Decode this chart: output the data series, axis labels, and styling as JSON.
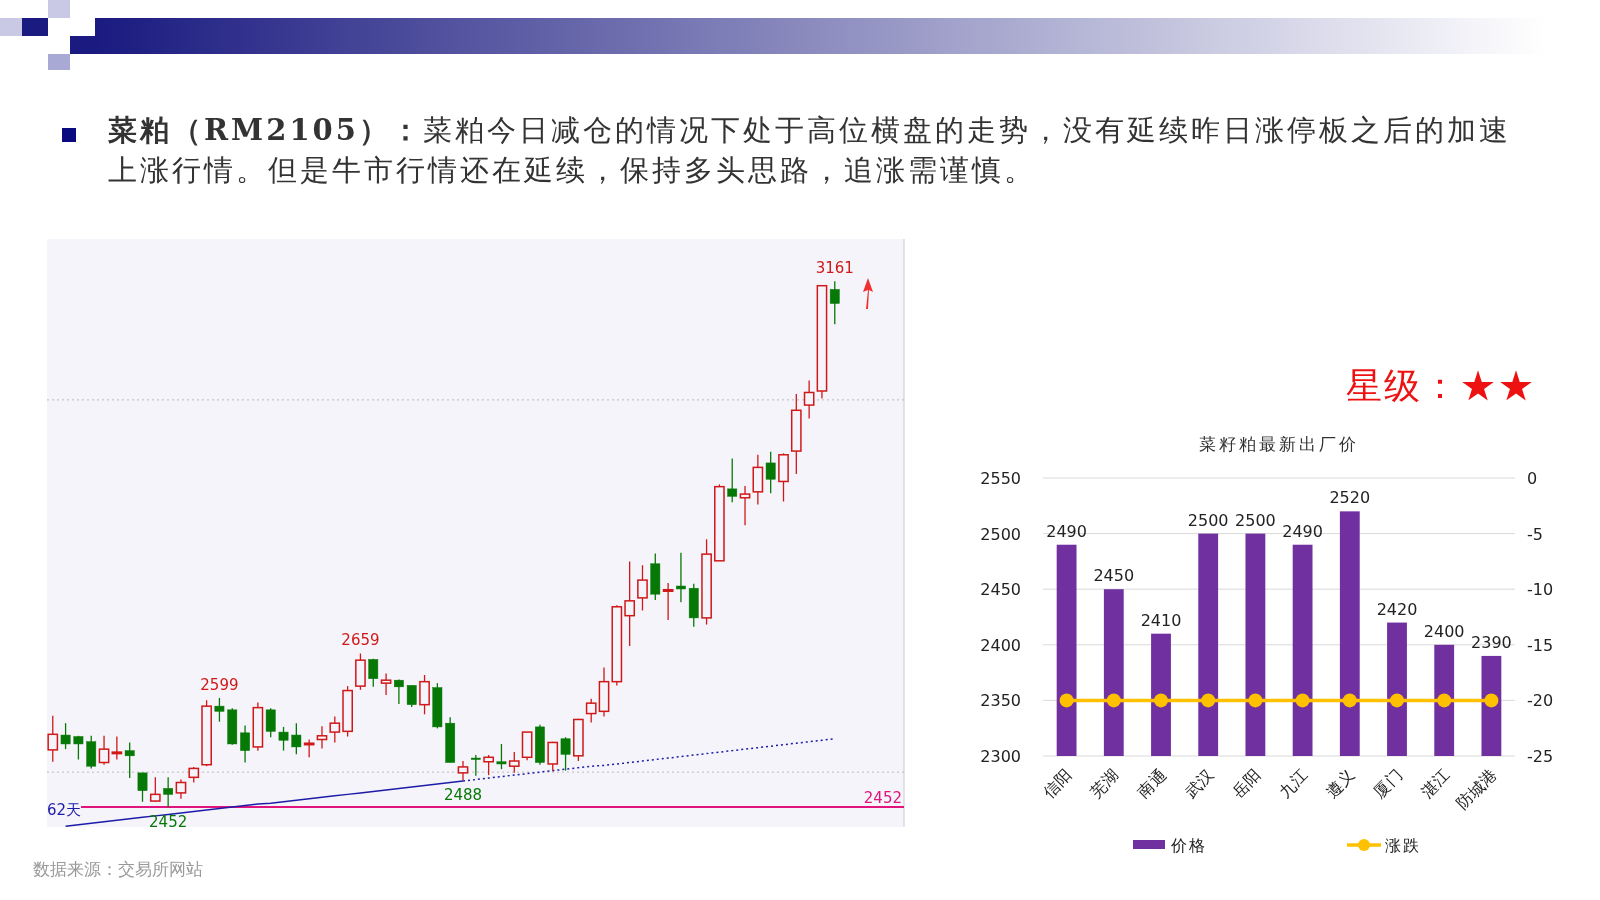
{
  "chart_data": [
    {
      "type": "candlestick",
      "title": "**菜粕（RM2105）：**菜粕今日减仓的情况下处于高位横盘的走势，没有延续昨日涨停板之后的加速上涨行情。但是牛市行情还在延续，保持多头思路，追涨需谨慎。",
      "categories": [
        null,
        null,
        null,
        null,
        null,
        null,
        null,
        null,
        null,
        null,
        null,
        null,
        null,
        null,
        null,
        null,
        null,
        null,
        null,
        null,
        null,
        null,
        null,
        null,
        null,
        null,
        null,
        null,
        null,
        null,
        null,
        null,
        null,
        null,
        null,
        null,
        null,
        null,
        null,
        null,
        null,
        null,
        null,
        null,
        null,
        null,
        null,
        null,
        null,
        null,
        null,
        null,
        null,
        null,
        null,
        null,
        null,
        null,
        null,
        null,
        null,
        null
      ],
      "ohlc": [
        [
          2529,
          2575,
          2513,
          2550
        ],
        [
          2549,
          2565,
          2530,
          2537
        ],
        [
          2547,
          2548,
          2516,
          2537
        ],
        [
          2540,
          2548,
          2504,
          2507
        ],
        [
          2512,
          2548,
          2509,
          2530
        ],
        [
          2525,
          2547,
          2516,
          2526
        ],
        [
          2528,
          2539,
          2491,
          2521
        ],
        [
          2498,
          2498,
          2459,
          2474
        ],
        [
          2460,
          2492,
          2459,
          2469
        ],
        [
          2477,
          2492,
          2452,
          2469
        ],
        [
          2471,
          2489,
          2463,
          2485
        ],
        [
          2492,
          2506,
          2485,
          2504
        ],
        [
          2509,
          2596,
          2507,
          2588
        ],
        [
          2588,
          2599,
          2567,
          2581
        ],
        [
          2583,
          2585,
          2536,
          2537
        ],
        [
          2552,
          2562,
          2512,
          2528
        ],
        [
          2533,
          2593,
          2528,
          2586
        ],
        [
          2583,
          2585,
          2546,
          2554
        ],
        [
          2553,
          2560,
          2528,
          2542
        ],
        [
          2549,
          2565,
          2523,
          2533
        ],
        [
          2537,
          2543,
          2519,
          2538
        ],
        [
          2543,
          2561,
          2531,
          2548
        ],
        [
          2553,
          2574,
          2539,
          2565
        ],
        [
          2554,
          2615,
          2547,
          2609
        ],
        [
          2615,
          2659,
          2610,
          2650
        ],
        [
          2651,
          2652,
          2614,
          2625
        ],
        [
          2619,
          2632,
          2603,
          2623
        ],
        [
          2623,
          2624,
          2591,
          2614
        ],
        [
          2616,
          2616,
          2587,
          2590
        ],
        [
          2590,
          2630,
          2577,
          2621
        ],
        [
          2613,
          2619,
          2558,
          2560
        ],
        [
          2565,
          2573,
          2512,
          2512
        ],
        [
          2498,
          2514,
          2488,
          2506
        ],
        [
          2518,
          2522,
          2494,
          2516
        ],
        [
          2513,
          2522,
          2495,
          2519
        ],
        [
          2513,
          2537,
          2503,
          2510
        ],
        [
          2507,
          2526,
          2498,
          2514
        ],
        [
          2519,
          2553,
          2515,
          2553
        ],
        [
          2560,
          2563,
          2509,
          2512
        ],
        [
          2510,
          2540,
          2501,
          2539
        ],
        [
          2544,
          2546,
          2501,
          2523
        ],
        [
          2521,
          2571,
          2514,
          2570
        ],
        [
          2578,
          2598,
          2566,
          2592
        ],
        [
          2581,
          2640,
          2574,
          2621
        ],
        [
          2621,
          2724,
          2616,
          2722
        ],
        [
          2710,
          2783,
          2669,
          2730
        ],
        [
          2734,
          2778,
          2717,
          2758
        ],
        [
          2780,
          2794,
          2731,
          2739
        ],
        [
          2743,
          2754,
          2704,
          2745
        ],
        [
          2750,
          2795,
          2728,
          2746
        ],
        [
          2747,
          2753,
          2695,
          2707
        ],
        [
          2707,
          2813,
          2698,
          2793
        ],
        [
          2784,
          2887,
          2784,
          2884
        ],
        [
          2881,
          2922,
          2863,
          2871
        ],
        [
          2869,
          2885,
          2832,
          2874
        ],
        [
          2877,
          2927,
          2860,
          2910
        ],
        [
          2916,
          2931,
          2875,
          2894
        ],
        [
          2891,
          2929,
          2864,
          2927
        ],
        [
          2932,
          3009,
          2901,
          2987
        ],
        [
          2994,
          3027,
          2976,
          3011
        ],
        [
          3013,
          3155,
          3003,
          3155
        ],
        [
          3150,
          3161,
          3103,
          3131
        ]
      ],
      "series": [
        {
          "type": "line",
          "color": "#1c1ca8",
          "line_style": "solid",
          "values": [
            null,
            2426,
            2428,
            2430,
            2432,
            2434,
            2436,
            2438,
            2440,
            2442,
            2444,
            2446,
            2448,
            2450,
            2452,
            2454,
            2456,
            2457,
            2459,
            2461,
            2463,
            2465,
            2467,
            2469,
            2471,
            2473,
            2475,
            2477,
            2479,
            2481,
            2483,
            2485,
            2487,
            null,
            null,
            null,
            null,
            null,
            null,
            null,
            null,
            null,
            null,
            null,
            null,
            null,
            null,
            null,
            null,
            null,
            null,
            null,
            null,
            null,
            null,
            null,
            null,
            null,
            null,
            null,
            null,
            null
          ]
        },
        {
          "type": "line",
          "color": "#1c1ca8",
          "line_style": "dotted",
          "values": [
            null,
            null,
            null,
            null,
            null,
            null,
            null,
            null,
            null,
            null,
            null,
            null,
            null,
            null,
            null,
            null,
            null,
            null,
            null,
            null,
            null,
            null,
            null,
            null,
            null,
            null,
            null,
            null,
            null,
            null,
            null,
            null,
            2487,
            2489,
            2491,
            2493,
            2495,
            2497,
            2499,
            2501,
            2503,
            2505,
            2507,
            2508,
            2510,
            2512,
            2514,
            2516,
            2518,
            2520,
            2522,
            2524,
            2526,
            2528,
            2530,
            2532,
            2534,
            2536,
            2538,
            2540,
            2542,
            2544
          ]
        }
      ],
      "ref_lines": [
        {
          "axis": "y",
          "value": 2452,
          "label": "2452",
          "color": "#e0147c",
          "line_style": "solid"
        },
        {
          "axis": "y",
          "value": 3001,
          "label": null,
          "color": "#bbbbbb",
          "line_style": "dotted"
        },
        {
          "axis": "y",
          "value": 2499,
          "label": null,
          "color": "#bbbbbb",
          "line_style": "dotted"
        }
      ],
      "annotations": [
        {
          "text": "3161",
          "y": 3161
        },
        {
          "text": "2659",
          "y": 2659
        },
        {
          "text": "2599",
          "y": 2599
        },
        {
          "text": "2488",
          "y": 2488
        },
        {
          "text": "2452",
          "y": 2452
        },
        "62天",
        "数据来源：交易所网站"
      ],
      "ylim": [
        2425,
        3218
      ],
      "tick_labels": false
    },
    {
      "type": "bar",
      "title": "菜籽粕最新出厂价",
      "categories": [
        "信阳",
        "芜湖",
        "南通",
        "武汉",
        "岳阳",
        "九江",
        "遵义",
        "厦门",
        "湛江",
        "防城港"
      ],
      "series": [
        {
          "name": "价格",
          "type": "bar",
          "color": "#7030a0",
          "values": [
            2490,
            2450,
            2410,
            2500,
            2500,
            2490,
            2520,
            2420,
            2400,
            2390
          ],
          "value_labels": [
            "2490",
            "2450",
            "2410",
            "2500",
            "2500",
            "2490",
            "2520",
            "2420",
            "2400",
            "2390"
          ]
        },
        {
          "name": "涨跌",
          "type": "line",
          "axis": "y2",
          "color": "#ffc000",
          "marker": "circle",
          "values": [
            -20,
            -20,
            -20,
            -20,
            -20,
            -20,
            -20,
            -20,
            -20,
            -20
          ]
        }
      ],
      "ylim": [
        2300,
        2550
      ],
      "yticks": [
        2300,
        2350,
        2400,
        2450,
        2500,
        2550
      ],
      "y2lim": [
        -25,
        0
      ],
      "y2ticks": [
        -25,
        -20,
        -15,
        -10,
        -5,
        0
      ],
      "grid": "y",
      "legend": "bottom",
      "annotations": [
        "星级：★★"
      ]
    }
  ]
}
